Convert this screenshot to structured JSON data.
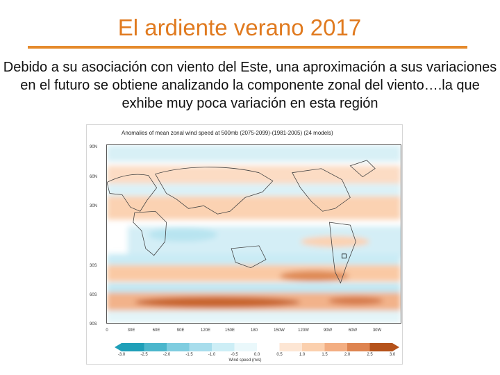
{
  "slide": {
    "title": "El ardiente verano 2017",
    "body": "Debido a su asociación con viento del Este, una aproximación a sus variaciones en el futuro se obtiene analizando la componente zonal del viento….la que exhibe muy poca variación en esta región"
  },
  "figure": {
    "title": "Anomalies of mean zonal wind speed at 500mb (2075-2099)-(1981-2005) (24 models)",
    "lat_labels": [
      "90N",
      "60N",
      "30N",
      "30S",
      "60S",
      "90S"
    ],
    "lon_labels": [
      "0",
      "30E",
      "60E",
      "90E",
      "120E",
      "150E",
      "180",
      "150W",
      "120W",
      "90W",
      "60W",
      "30W"
    ],
    "colorbar_labels": [
      "-3.0",
      "-2.5",
      "-2.0",
      "-1.5",
      "-1.0",
      "-0.5",
      "0.0",
      "0.5",
      "1.0",
      "1.5",
      "2.0",
      "2.5",
      "3.0"
    ],
    "colorbar_title": "Wind speed (m/s)",
    "colors": {
      "negative_strong": "#1f9fb8",
      "negative_light": "#cdeef6",
      "neutral": "#ffffff",
      "positive_light": "#fbd6b8",
      "positive_strong": "#b5521a"
    }
  }
}
